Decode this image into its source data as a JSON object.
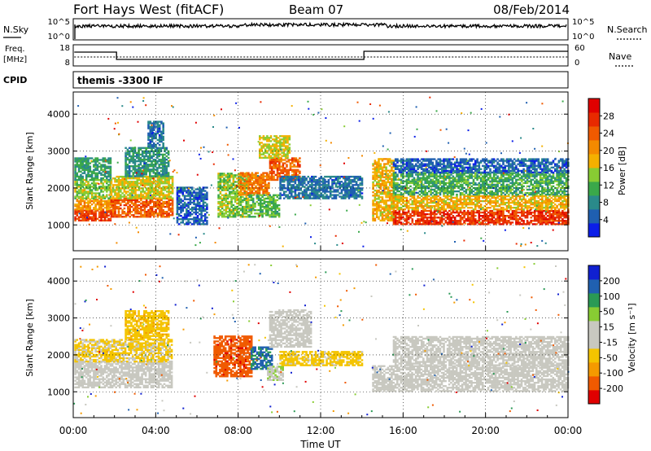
{
  "header": {
    "station": "Fort Hays West (fitACF)",
    "beam": "Beam 07",
    "date": "08/Feb/2014"
  },
  "noise_panel": {
    "left_label": "N.Sky",
    "left_ticks": [
      "10^5",
      "10^0"
    ],
    "right_ticks": [
      "10^5",
      "10^0"
    ],
    "right_label": "N.Search"
  },
  "freq_panel": {
    "left_label_1": "Freq.",
    "left_label_2": "[MHz]",
    "left_ticks": [
      "18",
      "8"
    ],
    "right_ticks": [
      "60",
      "0"
    ],
    "right_label": "Nave"
  },
  "cpid_panel": {
    "label": "CPID",
    "program": "themis -3300 IF"
  },
  "colors": {
    "power_scale": [
      "#0b1ee8",
      "#1f5fb0",
      "#2a8a8a",
      "#3aa84a",
      "#88cc33",
      "#f4b000",
      "#f48a00",
      "#f05a00",
      "#e82a00",
      "#e00000"
    ],
    "velocity_scale": [
      "#e00000",
      "#f05a00",
      "#f49a00",
      "#f4c400",
      "#c8c8c0",
      "#c8c8c0",
      "#88cc33",
      "#2a9a55",
      "#2060b0",
      "#1020d0"
    ]
  },
  "chart_data": [
    {
      "type": "heatmap",
      "name": "power",
      "ylabel": "Slant Range [km]",
      "yticks": [
        "1000",
        "2000",
        "3000",
        "4000"
      ],
      "ylim": [
        300,
        4600
      ],
      "xlim": [
        0,
        24
      ],
      "xticks": [
        0,
        4,
        8,
        12,
        16,
        20,
        24
      ],
      "grid": true,
      "colorbar": {
        "label": "Power [dB]",
        "ticks": [
          "4",
          "8",
          "12",
          "16",
          "20",
          "24",
          "28"
        ],
        "range": [
          0,
          32
        ]
      },
      "blobs": [
        {
          "t0": 0.05,
          "t1": 1.8,
          "r0": 1100,
          "r1": 1400,
          "v": 26
        },
        {
          "t0": 0.05,
          "t1": 1.8,
          "r0": 1400,
          "r1": 1700,
          "v": 20
        },
        {
          "t0": 0.05,
          "t1": 1.8,
          "r0": 1700,
          "r1": 2200,
          "v": 14
        },
        {
          "t0": 0.05,
          "t1": 1.8,
          "r0": 2200,
          "r1": 2800,
          "v": 10
        },
        {
          "t0": 1.8,
          "t1": 4.8,
          "r0": 1200,
          "r1": 1700,
          "v": 24
        },
        {
          "t0": 1.8,
          "t1": 4.8,
          "r0": 1700,
          "r1": 2300,
          "v": 16
        },
        {
          "t0": 2.5,
          "t1": 4.6,
          "r0": 2300,
          "r1": 3100,
          "v": 9
        },
        {
          "t0": 3.6,
          "t1": 4.4,
          "r0": 3100,
          "r1": 3800,
          "v": 6
        },
        {
          "t0": 5.0,
          "t1": 6.5,
          "r0": 1000,
          "r1": 2000,
          "v": 5
        },
        {
          "t0": 7.0,
          "t1": 8.5,
          "r0": 1200,
          "r1": 2400,
          "v": 14
        },
        {
          "t0": 8.0,
          "t1": 9.5,
          "r0": 1800,
          "r1": 2400,
          "v": 22
        },
        {
          "t0": 8.5,
          "t1": 10.0,
          "r0": 1200,
          "r1": 1800,
          "v": 12
        },
        {
          "t0": 9.5,
          "t1": 11.0,
          "r0": 2200,
          "r1": 2800,
          "v": 24
        },
        {
          "t0": 9.0,
          "t1": 10.5,
          "r0": 2800,
          "r1": 3400,
          "v": 16
        },
        {
          "t0": 10.0,
          "t1": 14.0,
          "r0": 1700,
          "r1": 2300,
          "v": 6
        },
        {
          "t0": 14.5,
          "t1": 15.5,
          "r0": 1100,
          "r1": 2800,
          "v": 18
        },
        {
          "t0": 15.5,
          "t1": 24,
          "r0": 1000,
          "r1": 1400,
          "v": 27
        },
        {
          "t0": 15.5,
          "t1": 24,
          "r0": 1400,
          "r1": 1800,
          "v": 18
        },
        {
          "t0": 15.5,
          "t1": 24,
          "r0": 1800,
          "r1": 2400,
          "v": 11
        },
        {
          "t0": 15.5,
          "t1": 24,
          "r0": 2400,
          "r1": 2800,
          "v": 5
        }
      ]
    },
    {
      "type": "heatmap",
      "name": "velocity",
      "ylabel": "Slant Range [km]",
      "yticks": [
        "1000",
        "2000",
        "3000",
        "4000"
      ],
      "ylim": [
        300,
        4600
      ],
      "xlim": [
        0,
        24
      ],
      "xticks": [
        0,
        4,
        8,
        12,
        16,
        20,
        24
      ],
      "xtick_labels": [
        "00:00",
        "04:00",
        "08:00",
        "12:00",
        "16:00",
        "20:00",
        "00:00"
      ],
      "xlabel": "Time UT",
      "grid": true,
      "colorbar": {
        "label": "Velocity [m s⁻¹]",
        "ticks": [
          "-200",
          "-100",
          "-50",
          "-15",
          "15",
          "50",
          "100",
          "200"
        ],
        "range": [
          -250,
          250
        ]
      },
      "blobs": [
        {
          "t0": 0.05,
          "t1": 4.8,
          "r0": 1100,
          "r1": 1800,
          "v": 0
        },
        {
          "t0": 0.05,
          "t1": 4.8,
          "r0": 1800,
          "r1": 2400,
          "v": -60
        },
        {
          "t0": 2.5,
          "t1": 4.6,
          "r0": 2400,
          "r1": 3200,
          "v": -80
        },
        {
          "t0": 6.8,
          "t1": 8.6,
          "r0": 1400,
          "r1": 2500,
          "v": -180
        },
        {
          "t0": 8.6,
          "t1": 9.6,
          "r0": 1600,
          "r1": 2200,
          "v": 160
        },
        {
          "t0": 9.4,
          "t1": 10.2,
          "r0": 1300,
          "r1": 1700,
          "v": 40
        },
        {
          "t0": 9.5,
          "t1": 11.5,
          "r0": 2200,
          "r1": 3200,
          "v": 0
        },
        {
          "t0": 10.0,
          "t1": 14.0,
          "r0": 1700,
          "r1": 2100,
          "v": -70
        },
        {
          "t0": 14.5,
          "t1": 24,
          "r0": 1000,
          "r1": 1700,
          "v": 0
        },
        {
          "t0": 15.5,
          "t1": 24,
          "r0": 1700,
          "r1": 2500,
          "v": -20
        }
      ]
    }
  ]
}
